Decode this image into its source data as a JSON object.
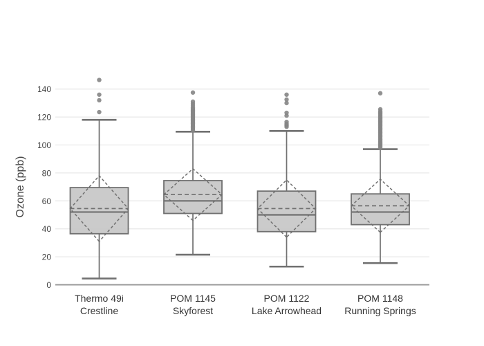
{
  "chart_data": {
    "type": "box",
    "title": "",
    "xlabel": "",
    "ylabel": "Ozone (ppb)",
    "ylim": [
      0,
      150
    ],
    "yticks": [
      0,
      20,
      40,
      60,
      80,
      100,
      120,
      140
    ],
    "grid": true,
    "legend": "none",
    "orientation": "vertical",
    "notes": "Grey box plots with dashed mean line and dashed standard-deviation diamond; open-circle grey outliers above upper fences",
    "series": [
      {
        "name": "Thermo 49i Crestline",
        "label_line1": "Thermo 49i",
        "label_line2": "Crestline",
        "lower_fence": 4.5,
        "q1": 36.5,
        "median": 52,
        "mean": 54.5,
        "q3": 69.5,
        "upper_fence": 118,
        "sd": 23.5,
        "outliers": [
          123.5,
          132,
          136,
          146.5
        ]
      },
      {
        "name": "POM 1145 Skyforest",
        "label_line1": "POM 1145",
        "label_line2": "Skyforest",
        "lower_fence": 21.5,
        "q1": 51,
        "median": 60,
        "mean": 64.5,
        "q3": 74.5,
        "upper_fence": 109.5,
        "sd": 18.5,
        "outliers": [
          110.5,
          111.5,
          112.5,
          113.5,
          114.5,
          115.5,
          116.5,
          117.5,
          118.5,
          119.5,
          120.5,
          121.5,
          122.5,
          123.5,
          124.5,
          125.5,
          126.5,
          128,
          129.5,
          131,
          137.5
        ]
      },
      {
        "name": "POM 1122 Lake Arrowhead",
        "label_line1": "POM 1122",
        "label_line2": "Lake Arrowhead",
        "lower_fence": 13,
        "q1": 38,
        "median": 50,
        "mean": 54.5,
        "q3": 67,
        "upper_fence": 110,
        "sd": 20.5,
        "outliers": [
          113,
          114,
          115,
          116.5,
          121,
          123,
          130,
          132.5,
          136
        ]
      },
      {
        "name": "POM 1148 Running Springs",
        "label_line1": "POM 1148",
        "label_line2": "Running Springs",
        "lower_fence": 15.5,
        "q1": 43,
        "median": 52,
        "mean": 56.5,
        "q3": 65,
        "upper_fence": 97,
        "sd": 19,
        "outliers": [
          98,
          99,
          100,
          101,
          102,
          103,
          104,
          105,
          106,
          107,
          108,
          109,
          110,
          111,
          112,
          113,
          114,
          115,
          116,
          117,
          118,
          119,
          120,
          121,
          122,
          123,
          124,
          125.5,
          137
        ]
      }
    ],
    "colors": {
      "line": "#707070",
      "box_fill": "#c7c7c7",
      "outlier": "#858585",
      "gridline": "#e9e9e9",
      "zeroline": "#9a9a9a",
      "tick_text": "#444444",
      "label_text": "#333333",
      "background": "#ffffff"
    }
  }
}
